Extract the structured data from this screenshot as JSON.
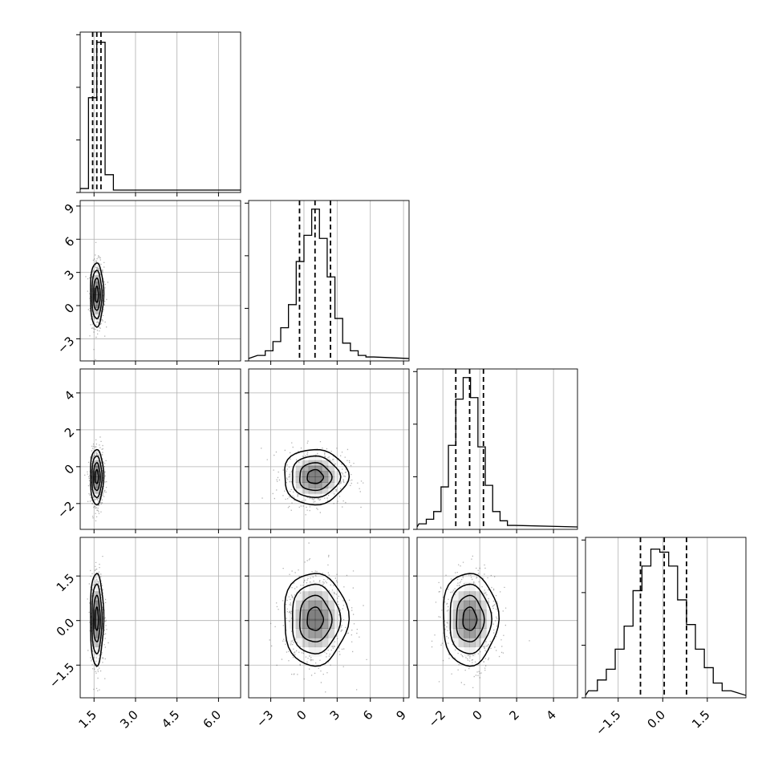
{
  "chart_data": {
    "type": "corner",
    "grid": true,
    "parameters": [
      {
        "ticks": [
          1.5,
          3.0,
          4.5,
          6.0
        ],
        "tick_labels": [
          "1.5",
          "3.0",
          "4.5",
          "6.0"
        ],
        "range": [
          1.0,
          6.8
        ],
        "quantiles": [
          1.45,
          1.6,
          1.75
        ],
        "hist": [
          0.01,
          0.6,
          0.96,
          0.1,
          0
        ],
        "hist_edges": [
          1.0,
          1.3,
          1.6,
          1.9,
          2.2,
          2.5
        ]
      },
      {
        "ticks": [
          -3,
          0,
          3,
          6,
          9
        ],
        "tick_labels": [
          "−3",
          "0",
          "3",
          "6",
          "9"
        ],
        "range": [
          -5,
          9.5
        ],
        "quantiles": [
          -0.4,
          1.0,
          2.4
        ],
        "hist": [
          0.02,
          0.05,
          0.11,
          0.2,
          0.35,
          0.63,
          0.8,
          0.97,
          0.78,
          0.53,
          0.26,
          0.1,
          0.05,
          0.02,
          0.01
        ],
        "hist_edges": [
          -4.2,
          -3.5,
          -2.8,
          -2.1,
          -1.4,
          -0.7,
          0.0,
          0.7,
          1.4,
          2.1,
          2.8,
          3.5,
          4.2,
          4.9,
          5.6,
          6.3
        ]
      },
      {
        "ticks": [
          -2,
          0,
          2,
          4
        ],
        "tick_labels": [
          "−2",
          "0",
          "2",
          "4"
        ],
        "range": [
          -3.4,
          5.3
        ],
        "quantiles": [
          -1.3,
          -0.55,
          0.2
        ],
        "hist": [
          0.02,
          0.05,
          0.1,
          0.26,
          0.53,
          0.83,
          0.97,
          0.84,
          0.52,
          0.27,
          0.1,
          0.04,
          0.01
        ],
        "hist_edges": [
          -3.3,
          -2.9,
          -2.5,
          -2.1,
          -1.7,
          -1.3,
          -0.9,
          -0.5,
          -0.1,
          0.3,
          0.7,
          1.1,
          1.5,
          1.9
        ]
      },
      {
        "ticks": [
          -1.5,
          0.0,
          1.5
        ],
        "tick_labels": [
          "−1.5",
          "0.0",
          "1.5"
        ],
        "range": [
          -2.6,
          2.8
        ],
        "quantiles": [
          -0.75,
          0.05,
          0.8
        ],
        "hist": [
          0.03,
          0.1,
          0.17,
          0.3,
          0.45,
          0.68,
          0.84,
          0.95,
          0.93,
          0.84,
          0.62,
          0.46,
          0.3,
          0.18,
          0.08,
          0.03
        ],
        "hist_edges": [
          -2.5,
          -2.2,
          -1.9,
          -1.6,
          -1.3,
          -1.0,
          -0.7,
          -0.4,
          -0.1,
          0.2,
          0.5,
          0.8,
          1.1,
          1.4,
          1.7,
          2.0,
          2.3
        ]
      }
    ],
    "pairs": [
      {
        "row": 1,
        "col": 0,
        "mean": [
          1.6,
          1.0
        ],
        "std": [
          0.12,
          1.45
        ]
      },
      {
        "row": 2,
        "col": 0,
        "mean": [
          1.6,
          -0.55
        ],
        "std": [
          0.12,
          0.75
        ]
      },
      {
        "row": 2,
        "col": 1,
        "mean": [
          1.0,
          -0.55
        ],
        "std": [
          1.45,
          0.75
        ]
      },
      {
        "row": 3,
        "col": 0,
        "mean": [
          1.6,
          0.05
        ],
        "std": [
          0.12,
          0.78
        ]
      },
      {
        "row": 3,
        "col": 1,
        "mean": [
          1.0,
          0.05
        ],
        "std": [
          1.45,
          0.78
        ]
      },
      {
        "row": 3,
        "col": 2,
        "mean": [
          -0.55,
          0.05
        ],
        "std": [
          0.75,
          0.78
        ]
      }
    ],
    "contour_levels": [
      0.5,
      1.0,
      1.5,
      2.0
    ],
    "colors": {
      "line": "#000000",
      "grid": "#b0b0b0",
      "points": "#555555",
      "density": "#000000"
    }
  }
}
